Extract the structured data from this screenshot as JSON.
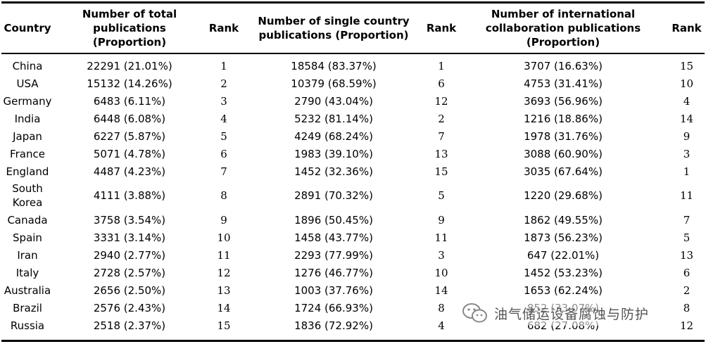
{
  "table": {
    "headers": [
      "Country",
      "Number of total publications (Proportion)",
      "Rank",
      "Number of single country publications (Proportion)",
      "Rank",
      "Number of international collaboration publications (Proportion)",
      "Rank"
    ],
    "rows": [
      [
        "China",
        "22291 (21.01%)",
        "1",
        "18584 (83.37%)",
        "1",
        "3707 (16.63%)",
        "15"
      ],
      [
        "USA",
        "15132 (14.26%)",
        "2",
        "10379 (68.59%)",
        "6",
        "4753 (31.41%)",
        "10"
      ],
      [
        "Germany",
        "6483 (6.11%)",
        "3",
        "2790 (43.04%)",
        "12",
        "3693 (56.96%)",
        "4"
      ],
      [
        "India",
        "6448 (6.08%)",
        "4",
        "5232 (81.14%)",
        "2",
        "1216 (18.86%)",
        "14"
      ],
      [
        "Japan",
        "6227 (5.87%)",
        "5",
        "4249 (68.24%)",
        "7",
        "1978 (31.76%)",
        "9"
      ],
      [
        "France",
        "5071 (4.78%)",
        "6",
        "1983 (39.10%)",
        "13",
        "3088 (60.90%)",
        "3"
      ],
      [
        "England",
        "4487 (4.23%)",
        "7",
        "1452 (32.36%)",
        "15",
        "3035 (67.64%)",
        "1"
      ],
      [
        "South Korea",
        "4111 (3.88%)",
        "8",
        "2891 (70.32%)",
        "5",
        "1220 (29.68%)",
        "11"
      ],
      [
        "Canada",
        "3758 (3.54%)",
        "9",
        "1896 (50.45%)",
        "9",
        "1862 (49.55%)",
        "7"
      ],
      [
        "Spain",
        "3331 (3.14%)",
        "10",
        "1458 (43.77%)",
        "11",
        "1873 (56.23%)",
        "5"
      ],
      [
        "Iran",
        "2940 (2.77%)",
        "11",
        "2293 (77.99%)",
        "3",
        "647 (22.01%)",
        "13"
      ],
      [
        "Italy",
        "2728 (2.57%)",
        "12",
        "1276 (46.77%)",
        "10",
        "1452 (53.23%)",
        "6"
      ],
      [
        "Australia",
        "2656 (2.50%)",
        "13",
        "1003 (37.76%)",
        "14",
        "1653 (62.24%)",
        "2"
      ],
      [
        "Brazil",
        "2576 (2.43%)",
        "14",
        "1724 (66.93%)",
        "8",
        "852 (33.07%)",
        "8"
      ],
      [
        "Russia",
        "2518 (2.37%)",
        "15",
        "1836 (72.92%)",
        "4",
        "682 (27.08%)",
        "12"
      ]
    ]
  },
  "watermark": {
    "icon": "wechat-icon",
    "text": "油气储运设备腐蚀与防护"
  }
}
